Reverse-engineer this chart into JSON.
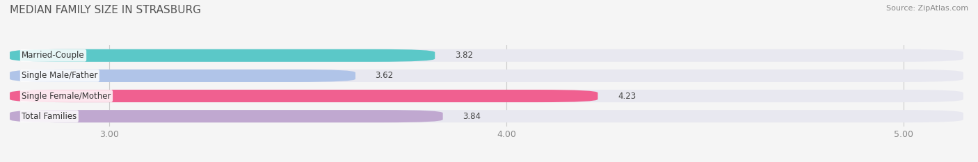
{
  "title": "MEDIAN FAMILY SIZE IN STRASBURG",
  "source": "Source: ZipAtlas.com",
  "categories": [
    "Total Families",
    "Single Female/Mother",
    "Single Male/Father",
    "Married-Couple"
  ],
  "values": [
    3.84,
    4.23,
    3.62,
    3.82
  ],
  "bar_colors": [
    "#c0a8d0",
    "#f06090",
    "#b0c4e8",
    "#5bc8c8"
  ],
  "bar_bg_color": "#e8e8f0",
  "xlim": [
    2.75,
    5.15
  ],
  "xticks": [
    3.0,
    4.0,
    5.0
  ],
  "xtick_labels": [
    "3.00",
    "4.00",
    "5.00"
  ],
  "label_fontsize": 8.5,
  "value_fontsize": 8.5,
  "title_fontsize": 11,
  "bar_height": 0.62,
  "background_color": "#f5f5f5"
}
